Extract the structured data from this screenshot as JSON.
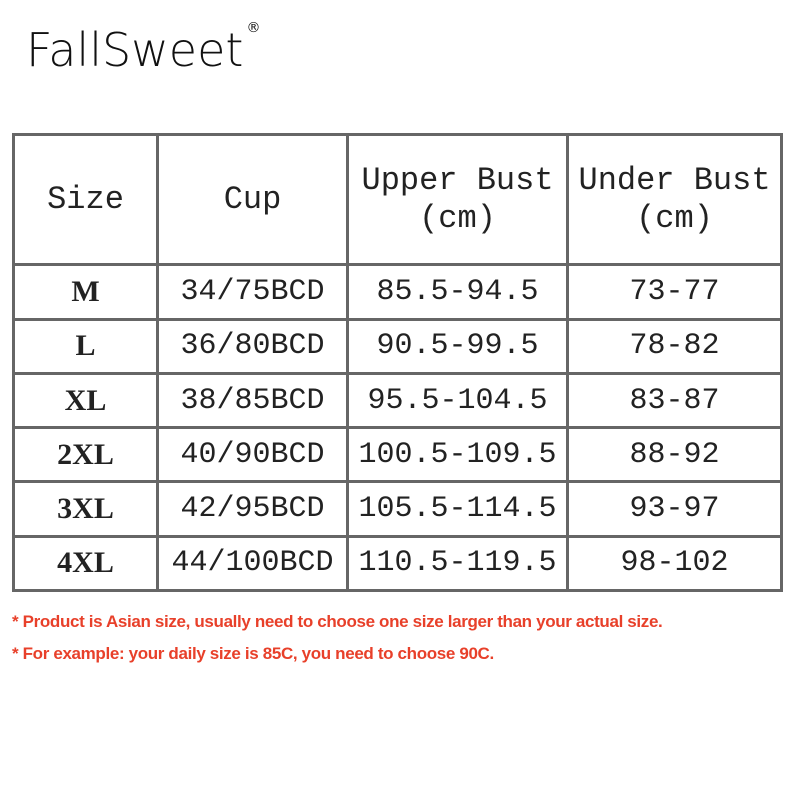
{
  "brand": {
    "name": "FallSweet",
    "registered": "®"
  },
  "table": {
    "headers": [
      "Size",
      "Cup",
      "Upper Bust\n(cm)",
      "Under Bust\n(cm)"
    ],
    "header_lines": [
      [
        "Size"
      ],
      [
        "Cup"
      ],
      [
        "Upper Bust",
        "(cm)"
      ],
      [
        "Under Bust",
        "(cm)"
      ]
    ],
    "rows": [
      [
        "M",
        "34/75BCD",
        "85.5-94.5",
        "73-77"
      ],
      [
        "L",
        "36/80BCD",
        "90.5-99.5",
        "78-82"
      ],
      [
        "XL",
        "38/85BCD",
        "95.5-104.5",
        "83-87"
      ],
      [
        "2XL",
        "40/90BCD",
        "100.5-109.5",
        "88-92"
      ],
      [
        "3XL",
        "42/95BCD",
        "105.5-114.5",
        "93-97"
      ],
      [
        "4XL",
        "44/100BCD",
        "110.5-119.5",
        "98-102"
      ]
    ]
  },
  "notes": [
    "* Product is Asian size, usually need to choose one size larger than your actual size.",
    "* For example: your daily size is 85C, you need to choose 90C."
  ],
  "colors": {
    "note": "#e8402a",
    "border": "#666666"
  }
}
